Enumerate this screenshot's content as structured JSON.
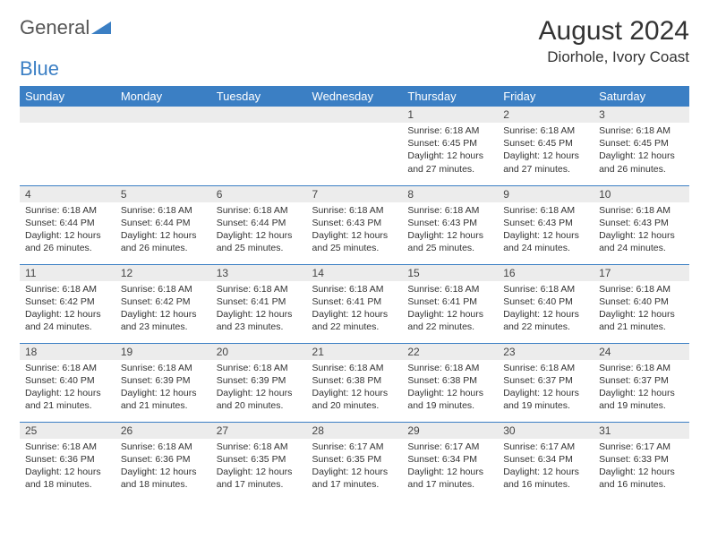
{
  "logo": {
    "text1": "General",
    "text2": "Blue"
  },
  "title": "August 2024",
  "location": "Diorhole, Ivory Coast",
  "style": {
    "header_bg": "#3b7fc4",
    "header_fg": "#ffffff",
    "daynum_bg": "#ececec",
    "border_color": "#3b7fc4",
    "body_bg": "#ffffff",
    "text_color": "#333333",
    "title_fontsize": 30,
    "location_fontsize": 17,
    "header_fontsize": 13,
    "cell_fontsize": 10.5
  },
  "columns": [
    "Sunday",
    "Monday",
    "Tuesday",
    "Wednesday",
    "Thursday",
    "Friday",
    "Saturday"
  ],
  "weeks": [
    [
      {
        "day": "",
        "lines": []
      },
      {
        "day": "",
        "lines": []
      },
      {
        "day": "",
        "lines": []
      },
      {
        "day": "",
        "lines": []
      },
      {
        "day": "1",
        "lines": [
          "Sunrise: 6:18 AM",
          "Sunset: 6:45 PM",
          "Daylight: 12 hours and 27 minutes."
        ]
      },
      {
        "day": "2",
        "lines": [
          "Sunrise: 6:18 AM",
          "Sunset: 6:45 PM",
          "Daylight: 12 hours and 27 minutes."
        ]
      },
      {
        "day": "3",
        "lines": [
          "Sunrise: 6:18 AM",
          "Sunset: 6:45 PM",
          "Daylight: 12 hours and 26 minutes."
        ]
      }
    ],
    [
      {
        "day": "4",
        "lines": [
          "Sunrise: 6:18 AM",
          "Sunset: 6:44 PM",
          "Daylight: 12 hours and 26 minutes."
        ]
      },
      {
        "day": "5",
        "lines": [
          "Sunrise: 6:18 AM",
          "Sunset: 6:44 PM",
          "Daylight: 12 hours and 26 minutes."
        ]
      },
      {
        "day": "6",
        "lines": [
          "Sunrise: 6:18 AM",
          "Sunset: 6:44 PM",
          "Daylight: 12 hours and 25 minutes."
        ]
      },
      {
        "day": "7",
        "lines": [
          "Sunrise: 6:18 AM",
          "Sunset: 6:43 PM",
          "Daylight: 12 hours and 25 minutes."
        ]
      },
      {
        "day": "8",
        "lines": [
          "Sunrise: 6:18 AM",
          "Sunset: 6:43 PM",
          "Daylight: 12 hours and 25 minutes."
        ]
      },
      {
        "day": "9",
        "lines": [
          "Sunrise: 6:18 AM",
          "Sunset: 6:43 PM",
          "Daylight: 12 hours and 24 minutes."
        ]
      },
      {
        "day": "10",
        "lines": [
          "Sunrise: 6:18 AM",
          "Sunset: 6:43 PM",
          "Daylight: 12 hours and 24 minutes."
        ]
      }
    ],
    [
      {
        "day": "11",
        "lines": [
          "Sunrise: 6:18 AM",
          "Sunset: 6:42 PM",
          "Daylight: 12 hours and 24 minutes."
        ]
      },
      {
        "day": "12",
        "lines": [
          "Sunrise: 6:18 AM",
          "Sunset: 6:42 PM",
          "Daylight: 12 hours and 23 minutes."
        ]
      },
      {
        "day": "13",
        "lines": [
          "Sunrise: 6:18 AM",
          "Sunset: 6:41 PM",
          "Daylight: 12 hours and 23 minutes."
        ]
      },
      {
        "day": "14",
        "lines": [
          "Sunrise: 6:18 AM",
          "Sunset: 6:41 PM",
          "Daylight: 12 hours and 22 minutes."
        ]
      },
      {
        "day": "15",
        "lines": [
          "Sunrise: 6:18 AM",
          "Sunset: 6:41 PM",
          "Daylight: 12 hours and 22 minutes."
        ]
      },
      {
        "day": "16",
        "lines": [
          "Sunrise: 6:18 AM",
          "Sunset: 6:40 PM",
          "Daylight: 12 hours and 22 minutes."
        ]
      },
      {
        "day": "17",
        "lines": [
          "Sunrise: 6:18 AM",
          "Sunset: 6:40 PM",
          "Daylight: 12 hours and 21 minutes."
        ]
      }
    ],
    [
      {
        "day": "18",
        "lines": [
          "Sunrise: 6:18 AM",
          "Sunset: 6:40 PM",
          "Daylight: 12 hours and 21 minutes."
        ]
      },
      {
        "day": "19",
        "lines": [
          "Sunrise: 6:18 AM",
          "Sunset: 6:39 PM",
          "Daylight: 12 hours and 21 minutes."
        ]
      },
      {
        "day": "20",
        "lines": [
          "Sunrise: 6:18 AM",
          "Sunset: 6:39 PM",
          "Daylight: 12 hours and 20 minutes."
        ]
      },
      {
        "day": "21",
        "lines": [
          "Sunrise: 6:18 AM",
          "Sunset: 6:38 PM",
          "Daylight: 12 hours and 20 minutes."
        ]
      },
      {
        "day": "22",
        "lines": [
          "Sunrise: 6:18 AM",
          "Sunset: 6:38 PM",
          "Daylight: 12 hours and 19 minutes."
        ]
      },
      {
        "day": "23",
        "lines": [
          "Sunrise: 6:18 AM",
          "Sunset: 6:37 PM",
          "Daylight: 12 hours and 19 minutes."
        ]
      },
      {
        "day": "24",
        "lines": [
          "Sunrise: 6:18 AM",
          "Sunset: 6:37 PM",
          "Daylight: 12 hours and 19 minutes."
        ]
      }
    ],
    [
      {
        "day": "25",
        "lines": [
          "Sunrise: 6:18 AM",
          "Sunset: 6:36 PM",
          "Daylight: 12 hours and 18 minutes."
        ]
      },
      {
        "day": "26",
        "lines": [
          "Sunrise: 6:18 AM",
          "Sunset: 6:36 PM",
          "Daylight: 12 hours and 18 minutes."
        ]
      },
      {
        "day": "27",
        "lines": [
          "Sunrise: 6:18 AM",
          "Sunset: 6:35 PM",
          "Daylight: 12 hours and 17 minutes."
        ]
      },
      {
        "day": "28",
        "lines": [
          "Sunrise: 6:17 AM",
          "Sunset: 6:35 PM",
          "Daylight: 12 hours and 17 minutes."
        ]
      },
      {
        "day": "29",
        "lines": [
          "Sunrise: 6:17 AM",
          "Sunset: 6:34 PM",
          "Daylight: 12 hours and 17 minutes."
        ]
      },
      {
        "day": "30",
        "lines": [
          "Sunrise: 6:17 AM",
          "Sunset: 6:34 PM",
          "Daylight: 12 hours and 16 minutes."
        ]
      },
      {
        "day": "31",
        "lines": [
          "Sunrise: 6:17 AM",
          "Sunset: 6:33 PM",
          "Daylight: 12 hours and 16 minutes."
        ]
      }
    ]
  ]
}
